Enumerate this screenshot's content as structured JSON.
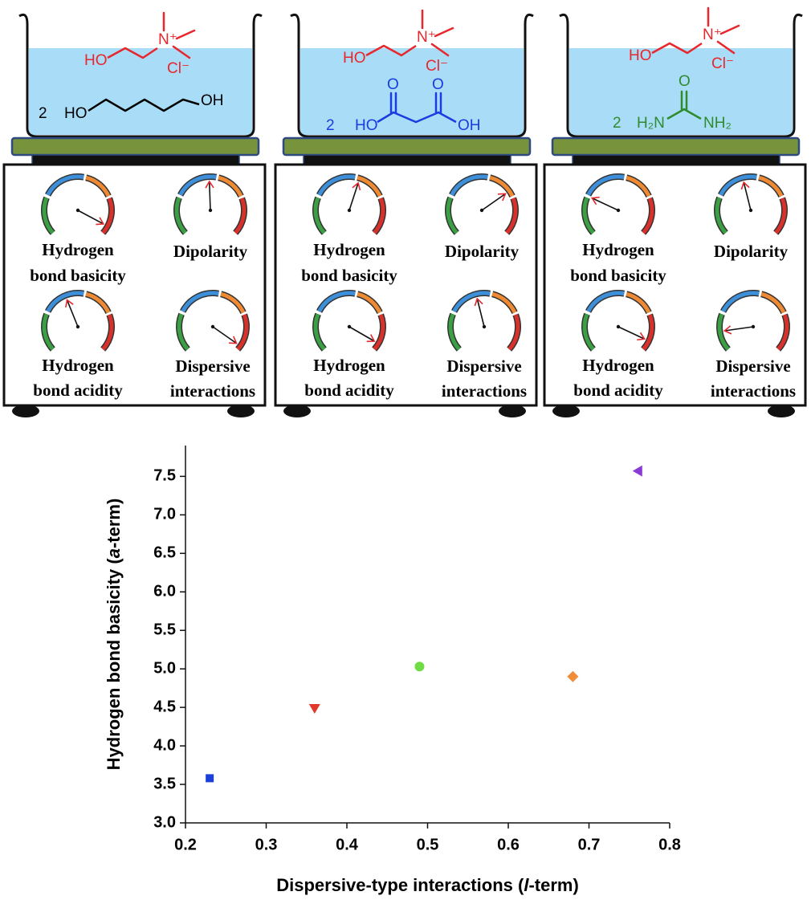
{
  "diagram": {
    "panels": [
      {
        "choline": {
          "hydroxyl": "HO",
          "nitrogen": "N⁺",
          "chloride": "Cl⁻"
        },
        "donor": {
          "count": "2",
          "labels": [
            "HO",
            "OH"
          ]
        },
        "gauges": [
          [
            "Hydrogen",
            "bond basicity"
          ],
          [
            "Dipolarity"
          ],
          [
            "Hydrogen",
            "bond acidity"
          ],
          [
            "Dispersive",
            "interactions"
          ]
        ]
      },
      {
        "choline": {
          "hydroxyl": "HO",
          "nitrogen": "N⁺",
          "chloride": "Cl⁻"
        },
        "donor": {
          "count": "2",
          "labels": [
            "HO",
            "OH",
            "O",
            "O"
          ]
        },
        "gauges": [
          [
            "Hydrogen",
            "bond basicity"
          ],
          [
            "Dipolarity"
          ],
          [
            "Hydrogen",
            "bond acidity"
          ],
          [
            "Dispersive",
            "interactions"
          ]
        ]
      },
      {
        "choline": {
          "hydroxyl": "HO",
          "nitrogen": "N⁺",
          "chloride": "Cl⁻"
        },
        "donor": {
          "count": "2",
          "labels": [
            "H₂N",
            "NH₂",
            "O"
          ]
        },
        "gauges": [
          [
            "Hydrogen",
            "bond basicity"
          ],
          [
            "Dipolarity"
          ],
          [
            "Hydrogen",
            "bond acidity"
          ],
          [
            "Dispersive",
            "interactions"
          ]
        ]
      }
    ]
  },
  "chart_data": {
    "type": "scatter",
    "x_label": [
      "Dispersive-type interactions (",
      "l",
      "-term)"
    ],
    "y_label": [
      "Hydrogen bond basicity (",
      "a",
      "-term)"
    ],
    "x": [
      0.23,
      0.36,
      0.49,
      0.68,
      0.76
    ],
    "values": [
      3.58,
      4.48,
      5.03,
      4.9,
      7.57
    ],
    "colors": [
      "#1b3fd8",
      "#e0392b",
      "#6fdc45",
      "#f08c3a",
      "#8a3bd6"
    ],
    "markers": [
      "square",
      "triangle-down",
      "circle",
      "diamond",
      "triangle-left"
    ],
    "xlim": [
      0.2,
      0.8
    ],
    "xticks": [
      0.2,
      0.3,
      0.4,
      0.5,
      0.6,
      0.7,
      0.8
    ],
    "ylim": [
      3.0,
      7.9
    ],
    "yticks": [
      {
        "value": 3,
        "label": "3.0"
      },
      3.5,
      {
        "value": 4,
        "label": "4.0"
      },
      4.5,
      {
        "value": 5,
        "label": "5.0"
      },
      5.5,
      {
        "value": 6,
        "label": "6.0"
      },
      6.5,
      {
        "value": 7,
        "label": "7.0"
      },
      7.5
    ],
    "grid": false
  }
}
